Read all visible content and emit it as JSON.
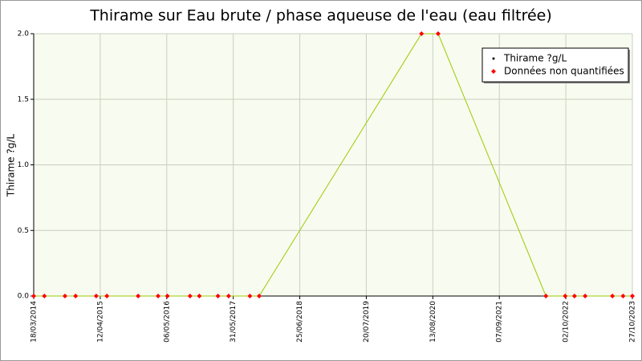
{
  "chart_data": {
    "type": "line",
    "title": "Thirame sur Eau brute / phase aqueuse de l'eau (eau filtrée)",
    "y_label": "Thirame ?g/L",
    "xlim": [
      0,
      9
    ],
    "xticks": [
      {
        "value": 0,
        "label": "18/03/2014"
      },
      {
        "value": 1,
        "label": "12/04/2015"
      },
      {
        "value": 2,
        "label": "06/05/2016"
      },
      {
        "value": 3,
        "label": "31/05/2017"
      },
      {
        "value": 4,
        "label": "25/06/2018"
      },
      {
        "value": 5,
        "label": "20/07/2019"
      },
      {
        "value": 6,
        "label": "13/08/2020"
      },
      {
        "value": 7,
        "label": "07/09/2021"
      },
      {
        "value": 8,
        "label": "02/10/2022"
      },
      {
        "value": 9,
        "label": "27/10/2023"
      }
    ],
    "ylim": [
      0,
      2
    ],
    "yticks": [
      {
        "value": 0,
        "label": "0.0"
      },
      0.5,
      {
        "value": 1,
        "label": "1.0"
      },
      1.5,
      {
        "value": 2,
        "label": "2.0"
      }
    ],
    "grid": true,
    "legend_position": "upper right",
    "series": [
      {
        "name": "Thirame ?g/L",
        "color": "#000000",
        "line_color": "#99cc00",
        "x": [
          0,
          0.16,
          0.47,
          0.63,
          0.94,
          1.1,
          1.57,
          1.87,
          2.01,
          2.35,
          2.49,
          2.77,
          2.93,
          3.25,
          3.39,
          5.83,
          6.08,
          7.7,
          7.99,
          8.13,
          8.29,
          8.7,
          8.86,
          9.0
        ],
        "values": [
          0,
          0,
          0,
          0,
          0,
          0,
          0,
          0,
          0,
          0,
          0,
          0,
          0,
          0,
          0,
          2,
          2,
          0,
          0,
          0,
          0,
          0,
          0,
          0
        ]
      },
      {
        "name": "Données non quantifiées",
        "color": "#ff0000",
        "x": [
          0,
          0.16,
          0.47,
          0.63,
          0.94,
          1.1,
          1.57,
          1.87,
          2.01,
          2.35,
          2.49,
          2.77,
          2.93,
          3.25,
          3.39,
          5.83,
          6.08,
          7.7,
          7.99,
          8.13,
          8.29,
          8.7,
          8.86,
          9.0
        ],
        "values": [
          0,
          0,
          0,
          0,
          0,
          0,
          0,
          0,
          0,
          0,
          0,
          0,
          0,
          0,
          0,
          2,
          2,
          0,
          0,
          0,
          0,
          0,
          0,
          0
        ]
      }
    ]
  }
}
